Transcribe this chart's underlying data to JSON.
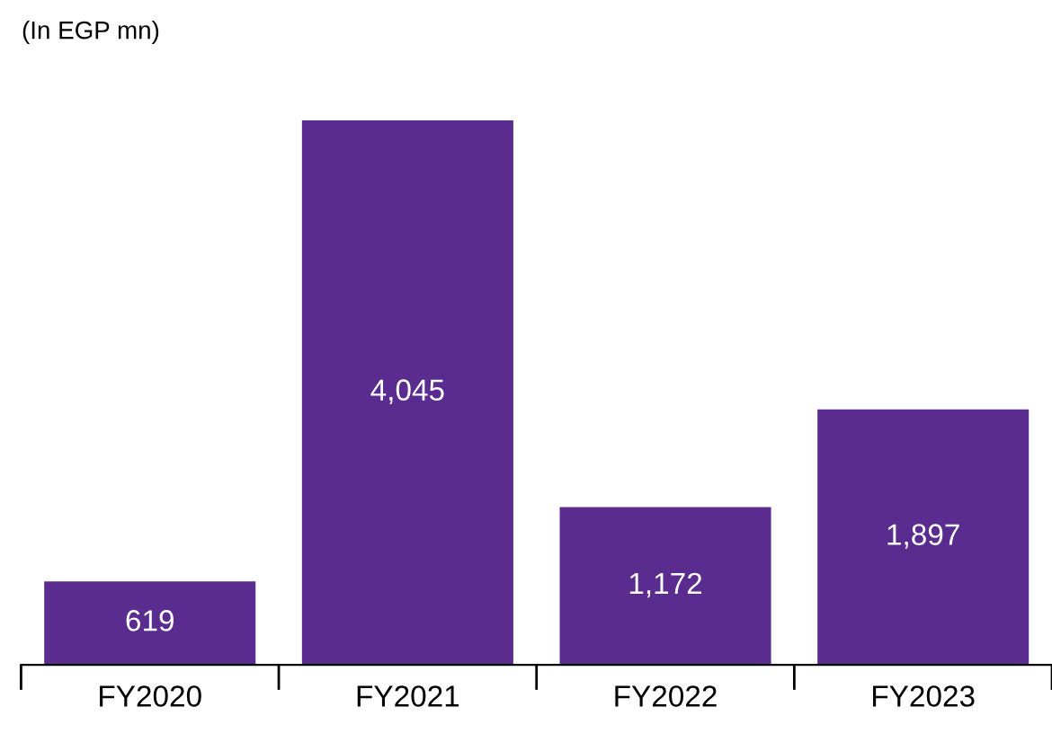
{
  "chart_data": {
    "type": "bar",
    "subtitle": "(In EGP mn)",
    "categories": [
      "FY2020",
      "FY2021",
      "FY2022",
      "FY2023"
    ],
    "values": [
      619,
      4045,
      1172,
      1897
    ],
    "value_labels": [
      "619",
      "4,045",
      "1,172",
      "1,897"
    ],
    "color": "#5b2c8f",
    "grid": false,
    "legend": false
  }
}
